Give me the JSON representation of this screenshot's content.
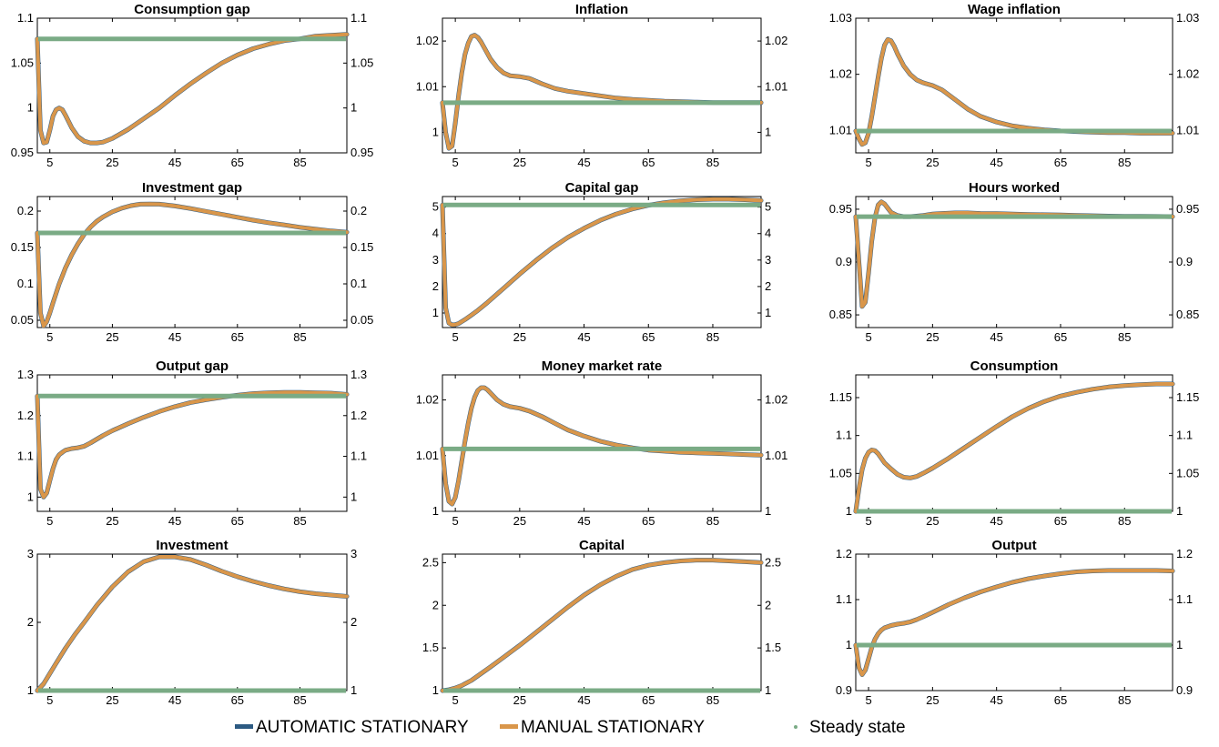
{
  "chart_data": [
    {
      "type": "line",
      "title": "Consumption gap",
      "xticks": [
        5,
        25,
        45,
        65,
        85
      ],
      "xlim": [
        1,
        100
      ],
      "ylim": [
        0.95,
        1.1
      ],
      "yticks": [
        0.95,
        1,
        1.05,
        1.1
      ],
      "ytick_labels": [
        "0.95",
        "1",
        "1.05",
        "1.1"
      ],
      "steady": 1.077,
      "x": [
        1,
        2,
        3,
        4,
        5,
        6,
        7,
        8,
        9,
        10,
        12,
        14,
        16,
        18,
        20,
        22,
        25,
        30,
        35,
        40,
        45,
        50,
        55,
        60,
        65,
        70,
        75,
        80,
        85,
        90,
        95,
        100
      ],
      "y": [
        1.077,
        0.975,
        0.961,
        0.962,
        0.975,
        0.991,
        0.998,
        1.0,
        0.998,
        0.992,
        0.978,
        0.968,
        0.963,
        0.961,
        0.961,
        0.962,
        0.966,
        0.976,
        0.988,
        1.0,
        1.014,
        1.027,
        1.039,
        1.05,
        1.059,
        1.066,
        1.071,
        1.075,
        1.077,
        1.08,
        1.081,
        1.082
      ]
    },
    {
      "type": "line",
      "title": "Inflation",
      "xticks": [
        5,
        25,
        45,
        65,
        85
      ],
      "xlim": [
        1,
        100
      ],
      "ylim": [
        0.9955,
        1.025
      ],
      "yticks": [
        1,
        1.01,
        1.02
      ],
      "ytick_labels": [
        "1",
        "1.01",
        "1.02"
      ],
      "steady": 1.0065,
      "x": [
        1,
        2,
        3,
        4,
        5,
        6,
        7,
        8,
        9,
        10,
        11,
        12,
        13,
        14,
        16,
        18,
        20,
        22,
        25,
        28,
        32,
        36,
        40,
        45,
        50,
        55,
        60,
        65,
        70,
        75,
        80,
        85,
        90,
        95,
        100
      ],
      "y": [
        1.0065,
        1.0,
        0.9965,
        0.997,
        1.002,
        1.008,
        1.013,
        1.017,
        1.0195,
        1.021,
        1.0213,
        1.0208,
        1.0198,
        1.0185,
        1.016,
        1.0142,
        1.013,
        1.0124,
        1.0122,
        1.0118,
        1.0106,
        1.0096,
        1.009,
        1.0085,
        1.008,
        1.0075,
        1.0072,
        1.007,
        1.0068,
        1.0067,
        1.0066,
        1.0065,
        1.0065,
        1.0065,
        1.0065
      ]
    },
    {
      "type": "line",
      "title": "Wage inflation",
      "xticks": [
        5,
        25,
        45,
        65,
        85
      ],
      "xlim": [
        1,
        100
      ],
      "ylim": [
        1.006,
        1.03
      ],
      "yticks": [
        1.01,
        1.02,
        1.03
      ],
      "ytick_labels": [
        "1.01",
        "1.02",
        "1.03"
      ],
      "steady": 1.0099,
      "x": [
        1,
        2,
        3,
        4,
        5,
        6,
        7,
        8,
        9,
        10,
        11,
        12,
        13,
        14,
        16,
        18,
        20,
        22,
        25,
        28,
        32,
        36,
        40,
        45,
        50,
        55,
        60,
        65,
        70,
        75,
        80,
        85,
        90,
        95,
        100
      ],
      "y": [
        1.0099,
        1.0085,
        1.0075,
        1.0078,
        1.0095,
        1.0125,
        1.016,
        1.0195,
        1.0228,
        1.0252,
        1.0262,
        1.026,
        1.025,
        1.0237,
        1.0215,
        1.02,
        1.019,
        1.0185,
        1.018,
        1.0172,
        1.0155,
        1.0138,
        1.0125,
        1.0115,
        1.0108,
        1.0104,
        1.0101,
        1.0099,
        1.0098,
        1.0097,
        1.0096,
        1.0096,
        1.0095,
        1.0095,
        1.0095
      ]
    },
    {
      "type": "line",
      "title": "Investment gap",
      "xticks": [
        5,
        25,
        45,
        65,
        85
      ],
      "xlim": [
        1,
        100
      ],
      "ylim": [
        0.04,
        0.22
      ],
      "yticks": [
        0.05,
        0.1,
        0.15,
        0.2
      ],
      "ytick_labels": [
        "0.05",
        "0.1",
        "0.15",
        "0.2"
      ],
      "steady": 0.17,
      "x": [
        1,
        2,
        3,
        4,
        5,
        6,
        7,
        8,
        9,
        10,
        12,
        14,
        16,
        18,
        20,
        22,
        25,
        28,
        31,
        34,
        37,
        40,
        45,
        50,
        55,
        60,
        65,
        70,
        75,
        80,
        85,
        90,
        95,
        100
      ],
      "y": [
        0.17,
        0.06,
        0.042,
        0.048,
        0.06,
        0.074,
        0.087,
        0.1,
        0.111,
        0.122,
        0.14,
        0.155,
        0.168,
        0.178,
        0.186,
        0.192,
        0.199,
        0.204,
        0.2075,
        0.2095,
        0.2098,
        0.2095,
        0.207,
        0.2035,
        0.1995,
        0.1955,
        0.1915,
        0.1875,
        0.184,
        0.181,
        0.1778,
        0.1752,
        0.1728,
        0.171
      ]
    },
    {
      "type": "line",
      "title": "Capital gap",
      "xticks": [
        5,
        25,
        45,
        65,
        85
      ],
      "xlim": [
        1,
        100
      ],
      "ylim": [
        0.45,
        5.4
      ],
      "yticks": [
        1,
        2,
        3,
        4,
        5
      ],
      "ytick_labels": [
        "1",
        "2",
        "3",
        "4",
        "5"
      ],
      "steady": 5.08,
      "x": [
        1,
        2,
        3,
        4,
        5,
        6,
        8,
        10,
        12,
        15,
        20,
        25,
        30,
        35,
        40,
        45,
        50,
        55,
        60,
        65,
        70,
        75,
        80,
        85,
        90,
        95,
        100
      ],
      "y": [
        5.08,
        1.2,
        0.62,
        0.55,
        0.56,
        0.6,
        0.75,
        0.92,
        1.1,
        1.4,
        1.93,
        2.47,
        2.98,
        3.45,
        3.86,
        4.2,
        4.5,
        4.74,
        4.93,
        5.07,
        5.17,
        5.24,
        5.28,
        5.3,
        5.3,
        5.28,
        5.25
      ]
    },
    {
      "type": "line",
      "title": "Hours worked",
      "xticks": [
        5,
        25,
        45,
        65,
        85
      ],
      "xlim": [
        1,
        100
      ],
      "ylim": [
        0.838,
        0.962
      ],
      "yticks": [
        0.85,
        0.9,
        0.95
      ],
      "ytick_labels": [
        "0.85",
        "0.9",
        "0.95"
      ],
      "steady": 0.943,
      "x": [
        1,
        2,
        3,
        4,
        5,
        6,
        7,
        8,
        9,
        10,
        11,
        12,
        14,
        16,
        18,
        20,
        22,
        25,
        28,
        32,
        36,
        40,
        45,
        50,
        55,
        60,
        65,
        70,
        75,
        80,
        85,
        90,
        95,
        100
      ],
      "y": [
        0.943,
        0.9,
        0.858,
        0.862,
        0.89,
        0.92,
        0.942,
        0.954,
        0.957,
        0.955,
        0.951,
        0.947,
        0.944,
        0.943,
        0.943,
        0.9435,
        0.944,
        0.9455,
        0.946,
        0.9465,
        0.9465,
        0.946,
        0.9458,
        0.9455,
        0.945,
        0.9448,
        0.9445,
        0.9442,
        0.9438,
        0.9435,
        0.9433,
        0.9432,
        0.9431,
        0.943
      ]
    },
    {
      "type": "line",
      "title": "Output gap",
      "xticks": [
        5,
        25,
        45,
        65,
        85
      ],
      "xlim": [
        1,
        100
      ],
      "ylim": [
        0.965,
        1.3
      ],
      "yticks": [
        1,
        1.1,
        1.2,
        1.3
      ],
      "ytick_labels": [
        "1",
        "1.1",
        "1.2",
        "1.3"
      ],
      "steady": 1.248,
      "x": [
        1,
        2,
        3,
        4,
        5,
        6,
        7,
        8,
        9,
        10,
        12,
        14,
        16,
        18,
        20,
        22,
        25,
        30,
        35,
        40,
        45,
        50,
        55,
        60,
        65,
        70,
        75,
        80,
        85,
        90,
        95,
        100
      ],
      "y": [
        1.248,
        1.02,
        1.0,
        1.01,
        1.04,
        1.07,
        1.092,
        1.104,
        1.11,
        1.115,
        1.119,
        1.121,
        1.125,
        1.133,
        1.142,
        1.151,
        1.163,
        1.18,
        1.196,
        1.21,
        1.222,
        1.232,
        1.239,
        1.245,
        1.25,
        1.254,
        1.256,
        1.257,
        1.257,
        1.256,
        1.255,
        1.252
      ]
    },
    {
      "type": "line",
      "title": "Money market rate",
      "xticks": [
        5,
        25,
        45,
        65,
        85
      ],
      "xlim": [
        1,
        100
      ],
      "ylim": [
        1,
        1.0245
      ],
      "yticks": [
        1,
        1.01,
        1.02
      ],
      "ytick_labels": [
        "1",
        "1.01",
        "1.02"
      ],
      "steady": 1.0112,
      "x": [
        1,
        2,
        3,
        4,
        5,
        6,
        7,
        8,
        9,
        10,
        11,
        12,
        13,
        14,
        15,
        16,
        18,
        20,
        22,
        25,
        28,
        32,
        36,
        40,
        45,
        50,
        55,
        60,
        65,
        70,
        75,
        80,
        85,
        90,
        95,
        100
      ],
      "y": [
        1.0112,
        1.005,
        1.0018,
        1.0013,
        1.0025,
        1.0055,
        1.009,
        1.0125,
        1.0158,
        1.0185,
        1.0205,
        1.0217,
        1.0222,
        1.0222,
        1.0218,
        1.0212,
        1.02,
        1.0192,
        1.0188,
        1.0185,
        1.018,
        1.017,
        1.0158,
        1.0146,
        1.0135,
        1.0126,
        1.0119,
        1.0114,
        1.011,
        1.0108,
        1.0106,
        1.0105,
        1.0104,
        1.0103,
        1.0102,
        1.0101
      ]
    },
    {
      "type": "line",
      "title": "Consumption",
      "xticks": [
        5,
        25,
        45,
        65,
        85
      ],
      "xlim": [
        1,
        100
      ],
      "ylim": [
        1,
        1.18
      ],
      "yticks": [
        1,
        1.05,
        1.1,
        1.15
      ],
      "ytick_labels": [
        "1",
        "1.05",
        "1.1",
        "1.15"
      ],
      "steady": 1.0,
      "x": [
        1,
        2,
        3,
        4,
        5,
        6,
        7,
        8,
        9,
        10,
        12,
        14,
        16,
        18,
        20,
        22,
        25,
        30,
        35,
        40,
        45,
        50,
        55,
        60,
        65,
        70,
        75,
        80,
        85,
        90,
        95,
        100
      ],
      "y": [
        1.0,
        1.03,
        1.055,
        1.07,
        1.078,
        1.081,
        1.08,
        1.076,
        1.07,
        1.064,
        1.056,
        1.049,
        1.045,
        1.044,
        1.046,
        1.05,
        1.057,
        1.07,
        1.084,
        1.098,
        1.112,
        1.125,
        1.136,
        1.145,
        1.152,
        1.157,
        1.161,
        1.164,
        1.166,
        1.167,
        1.168,
        1.168
      ]
    },
    {
      "type": "line",
      "title": "Investment",
      "xticks": [
        5,
        25,
        45,
        65,
        85
      ],
      "xlim": [
        1,
        100
      ],
      "ylim": [
        1,
        3.0
      ],
      "yticks": [
        1,
        2,
        3
      ],
      "ytick_labels": [
        "1",
        "2",
        "3"
      ],
      "steady": 1.0,
      "x": [
        1,
        3,
        5,
        7,
        10,
        13,
        16,
        20,
        25,
        30,
        35,
        40,
        45,
        50,
        55,
        60,
        65,
        70,
        75,
        80,
        85,
        90,
        95,
        100
      ],
      "y": [
        1.0,
        1.1,
        1.25,
        1.4,
        1.62,
        1.82,
        2.0,
        2.25,
        2.52,
        2.74,
        2.89,
        2.96,
        2.96,
        2.92,
        2.84,
        2.75,
        2.67,
        2.6,
        2.54,
        2.49,
        2.45,
        2.42,
        2.4,
        2.38
      ]
    },
    {
      "type": "line",
      "title": "Capital",
      "xticks": [
        5,
        25,
        45,
        65,
        85
      ],
      "xlim": [
        1,
        100
      ],
      "ylim": [
        1,
        2.6
      ],
      "yticks": [
        1,
        1.5,
        2,
        2.5
      ],
      "ytick_labels": [
        "1",
        "1.5",
        "2",
        "2.5"
      ],
      "steady": 1.0,
      "x": [
        1,
        3,
        5,
        7,
        10,
        13,
        16,
        20,
        25,
        30,
        35,
        40,
        45,
        50,
        55,
        60,
        65,
        70,
        75,
        80,
        85,
        90,
        95,
        100
      ],
      "y": [
        1.0,
        1.01,
        1.03,
        1.06,
        1.12,
        1.2,
        1.28,
        1.39,
        1.53,
        1.68,
        1.83,
        1.98,
        2.12,
        2.24,
        2.34,
        2.42,
        2.47,
        2.5,
        2.52,
        2.53,
        2.53,
        2.52,
        2.51,
        2.5
      ]
    },
    {
      "type": "line",
      "title": "Output",
      "xticks": [
        5,
        25,
        45,
        65,
        85
      ],
      "xlim": [
        1,
        100
      ],
      "ylim": [
        0.9,
        1.2
      ],
      "yticks": [
        0.9,
        1,
        1.1,
        1.2
      ],
      "ytick_labels": [
        "0.9",
        "1",
        "1.1",
        "1.2"
      ],
      "steady": 1.0,
      "x": [
        1,
        2,
        3,
        4,
        5,
        6,
        7,
        8,
        9,
        10,
        12,
        14,
        16,
        18,
        20,
        22,
        25,
        30,
        35,
        40,
        45,
        50,
        55,
        60,
        65,
        70,
        75,
        80,
        85,
        90,
        95,
        100
      ],
      "y": [
        1.0,
        0.95,
        0.935,
        0.945,
        0.97,
        0.995,
        1.013,
        1.025,
        1.033,
        1.038,
        1.043,
        1.046,
        1.048,
        1.051,
        1.056,
        1.062,
        1.072,
        1.089,
        1.104,
        1.117,
        1.128,
        1.138,
        1.146,
        1.152,
        1.157,
        1.161,
        1.163,
        1.164,
        1.164,
        1.164,
        1.164,
        1.163
      ]
    }
  ],
  "legend": [
    {
      "label": "AUTOMATIC STATIONARY",
      "color": "#2c5a82",
      "kind": "line"
    },
    {
      "label": "MANUAL  STATIONARY",
      "color": "#d9964a",
      "kind": "line"
    },
    {
      "label": "Steady state",
      "color": "#7aab85",
      "kind": "dot"
    }
  ],
  "colors": {
    "automatic": "#2c5a82",
    "manual": "#d9964a",
    "steady": "#7aab85"
  }
}
